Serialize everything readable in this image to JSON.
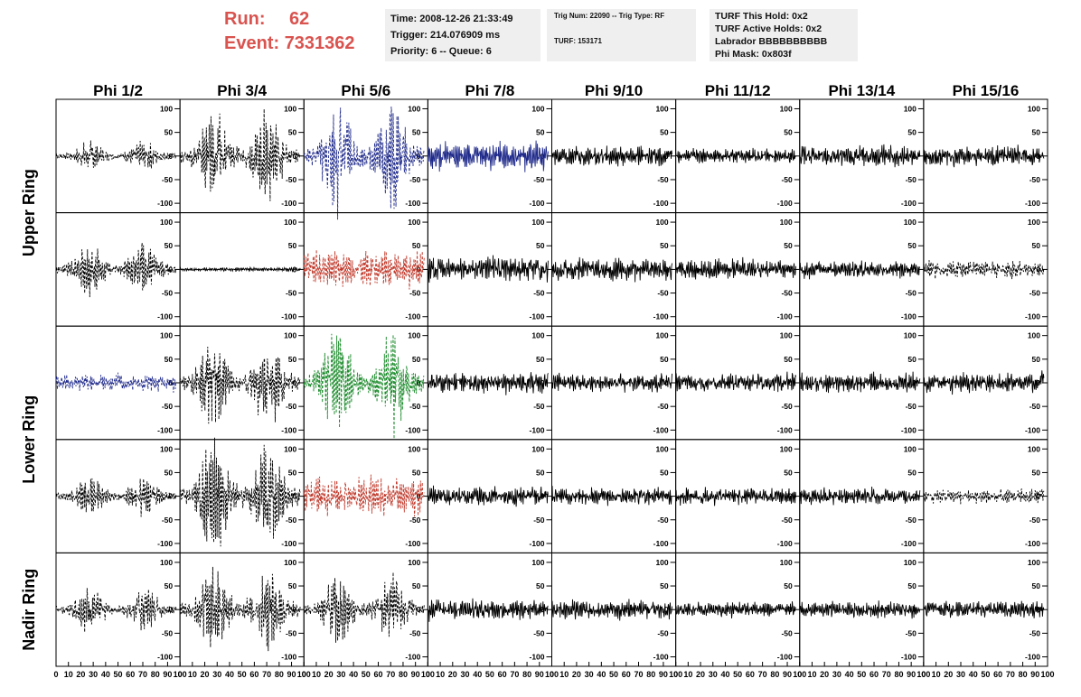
{
  "header": {
    "run_label": "Run:",
    "run_value": "62",
    "event_label": "Event:",
    "event_value": "7331362",
    "accent_color": "#d9534f",
    "time_line": "Time: 2008-12-26 21:33:49",
    "trigger_line": "Trigger: 214.076909 ms",
    "priority_line": "Priority: 6 -- Queue: 6",
    "trig_line": "Trig Num: 22090 -- Trig Type: RF",
    "turf_line": "TURF: 153171",
    "turf_hold_line": "TURF This Hold: 0x2",
    "turf_active_line": "TURF Active Holds: 0x2",
    "labrador_line": "Labrador BBBBBBBBBB",
    "phimask_line": "Phi Mask: 0x803f"
  },
  "chart_data": {
    "type": "line",
    "title": "",
    "columns": [
      "Phi 1/2",
      "Phi 3/4",
      "Phi 5/6",
      "Phi 7/8",
      "Phi 9/10",
      "Phi 11/12",
      "Phi 13/14",
      "Phi 15/16"
    ],
    "rows": [
      "Upper Ring",
      "Upper Ring",
      "Lower Ring",
      "Lower Ring",
      "Nadir Ring"
    ],
    "row_labels": [
      "Upper Ring",
      "Lower Ring",
      "Nadir Ring"
    ],
    "ylim": [
      -120,
      120
    ],
    "yticks": [
      -100,
      -50,
      0,
      50,
      100
    ],
    "xlim": [
      0,
      100
    ],
    "xticks": [
      0,
      10,
      20,
      30,
      40,
      50,
      60,
      70,
      80,
      90,
      100
    ],
    "grid": false,
    "panels": [
      [
        {
          "color": "#000000",
          "dashed": true,
          "amplitude": 28,
          "envelope": "two-packet"
        },
        {
          "color": "#000000",
          "dashed": true,
          "amplitude": 85,
          "envelope": "two-packet"
        },
        {
          "color": "#1f2a8a",
          "dashed": true,
          "amplitude": 110,
          "envelope": "two-packet"
        },
        {
          "color": "#1f2a8a",
          "dashed": false,
          "amplitude": 30,
          "envelope": "flat"
        },
        {
          "color": "#000000",
          "dashed": false,
          "amplitude": 22,
          "envelope": "flat"
        },
        {
          "color": "#000000",
          "dashed": false,
          "amplitude": 15,
          "envelope": "flat"
        },
        {
          "color": "#000000",
          "dashed": false,
          "amplitude": 22,
          "envelope": "flat"
        },
        {
          "color": "#000000",
          "dashed": false,
          "amplitude": 22,
          "envelope": "flat"
        }
      ],
      [
        {
          "color": "#000000",
          "dashed": true,
          "amplitude": 50,
          "envelope": "two-packet"
        },
        {
          "color": "#000000",
          "dashed": false,
          "amplitude": 4,
          "envelope": "flat"
        },
        {
          "color": "#c0392b",
          "dashed": true,
          "amplitude": 40,
          "envelope": "flat"
        },
        {
          "color": "#000000",
          "dashed": false,
          "amplitude": 28,
          "envelope": "flat"
        },
        {
          "color": "#000000",
          "dashed": false,
          "amplitude": 24,
          "envelope": "flat"
        },
        {
          "color": "#000000",
          "dashed": false,
          "amplitude": 22,
          "envelope": "flat"
        },
        {
          "color": "#000000",
          "dashed": false,
          "amplitude": 18,
          "envelope": "flat"
        },
        {
          "color": "#000000",
          "dashed": true,
          "amplitude": 18,
          "envelope": "flat"
        }
      ],
      [
        {
          "color": "#1f2a8a",
          "dashed": true,
          "amplitude": 18,
          "envelope": "flat"
        },
        {
          "color": "#000000",
          "dashed": true,
          "amplitude": 85,
          "envelope": "two-packet"
        },
        {
          "color": "#1a8a2a",
          "dashed": true,
          "amplitude": 100,
          "envelope": "two-packet"
        },
        {
          "color": "#000000",
          "dashed": false,
          "amplitude": 22,
          "envelope": "flat"
        },
        {
          "color": "#000000",
          "dashed": false,
          "amplitude": 20,
          "envelope": "flat"
        },
        {
          "color": "#000000",
          "dashed": false,
          "amplitude": 20,
          "envelope": "flat"
        },
        {
          "color": "#000000",
          "dashed": false,
          "amplitude": 20,
          "envelope": "flat"
        },
        {
          "color": "#000000",
          "dashed": false,
          "amplitude": 22,
          "envelope": "flat"
        }
      ],
      [
        {
          "color": "#000000",
          "dashed": true,
          "amplitude": 38,
          "envelope": "two-packet"
        },
        {
          "color": "#000000",
          "dashed": true,
          "amplitude": 110,
          "envelope": "two-packet"
        },
        {
          "color": "#c0392b",
          "dashed": true,
          "amplitude": 40,
          "envelope": "flat"
        },
        {
          "color": "#000000",
          "dashed": false,
          "amplitude": 20,
          "envelope": "flat"
        },
        {
          "color": "#000000",
          "dashed": false,
          "amplitude": 18,
          "envelope": "flat"
        },
        {
          "color": "#000000",
          "dashed": false,
          "amplitude": 18,
          "envelope": "flat"
        },
        {
          "color": "#000000",
          "dashed": false,
          "amplitude": 18,
          "envelope": "flat"
        },
        {
          "color": "#000000",
          "dashed": true,
          "amplitude": 15,
          "envelope": "flat"
        }
      ],
      [
        {
          "color": "#000000",
          "dashed": true,
          "amplitude": 45,
          "envelope": "two-packet"
        },
        {
          "color": "#000000",
          "dashed": true,
          "amplitude": 80,
          "envelope": "two-packet"
        },
        {
          "color": "#000000",
          "dashed": true,
          "amplitude": 65,
          "envelope": "two-packet"
        },
        {
          "color": "#000000",
          "dashed": false,
          "amplitude": 22,
          "envelope": "flat"
        },
        {
          "color": "#000000",
          "dashed": false,
          "amplitude": 20,
          "envelope": "flat"
        },
        {
          "color": "#000000",
          "dashed": false,
          "amplitude": 16,
          "envelope": "flat"
        },
        {
          "color": "#000000",
          "dashed": false,
          "amplitude": 18,
          "envelope": "flat"
        },
        {
          "color": "#000000",
          "dashed": false,
          "amplitude": 18,
          "envelope": "flat"
        }
      ]
    ]
  }
}
